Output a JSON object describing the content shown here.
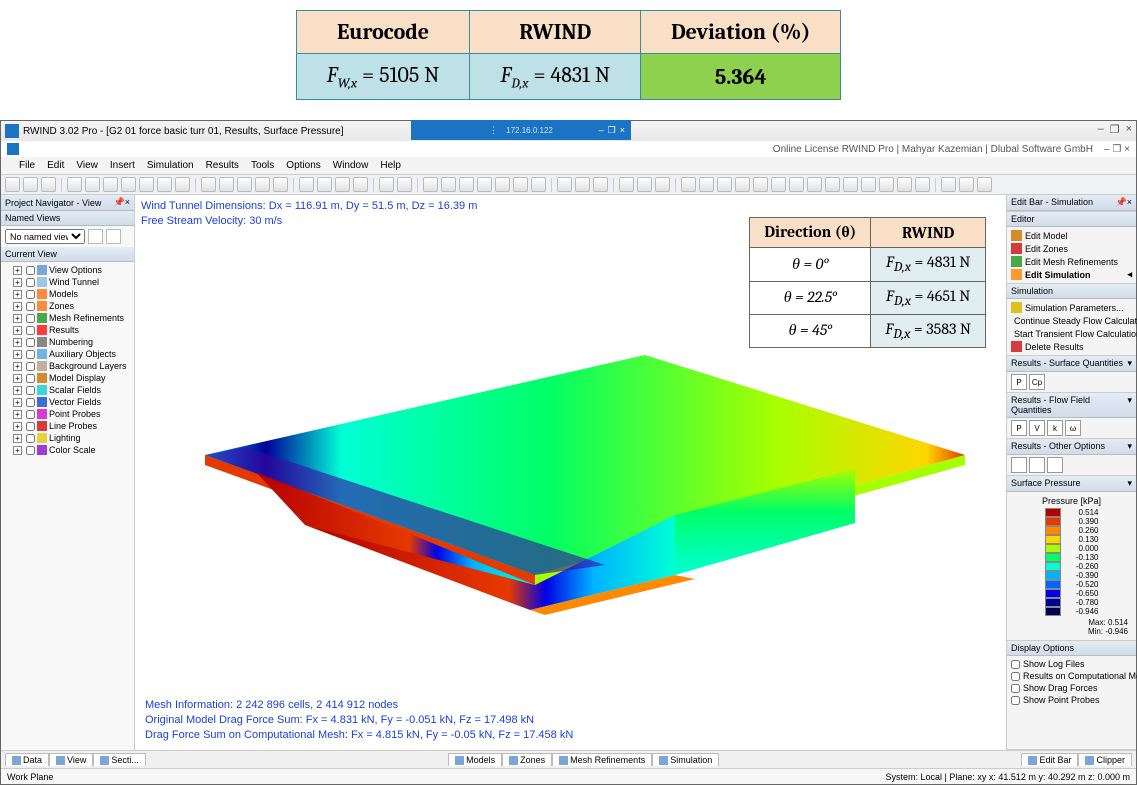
{
  "comparison_table": {
    "headers": [
      "Eurocode",
      "RWIND",
      "Deviation (%)"
    ],
    "eurocode_value": "5105 N",
    "rwind_value": "4831 N",
    "deviation": "5.364",
    "header_bg": "#f9dfc5",
    "cell_bg": "#bde1e6",
    "dev_bg": "#8fd14f",
    "border": "#3a8aa0",
    "fw_label_prefix": "F",
    "fw_sub": "W,x",
    "fd_label_prefix": "F",
    "fd_sub": "D,x"
  },
  "window": {
    "title": "RWIND 3.02 Pro - [G2 01 force basic turr 01, Results, Surface Pressure]",
    "subtitle_left_icon": "app",
    "license_line": "Online License RWIND Pro | Mahyar Kazemian | Dlubal Software GmbH",
    "float_ip": "172.16.0.122",
    "menus": [
      "File",
      "Edit",
      "View",
      "Insert",
      "Simulation",
      "Results",
      "Tools",
      "Options",
      "Window",
      "Help"
    ],
    "win_btns": {
      "min": "–",
      "max": "❐",
      "close": "×",
      "child_min": "–",
      "child_max": "❐",
      "child_close": "×"
    }
  },
  "left": {
    "nav_hdr": "Project Navigator - View",
    "named_hdr": "Named Views",
    "named_placeholder": "No named views",
    "curview_hdr": "Current View",
    "tree": [
      {
        "label": "View Options",
        "color": "#7aa6d8"
      },
      {
        "label": "Wind Tunnel",
        "color": "#9cc6e8"
      },
      {
        "label": "Models",
        "color": "#ff8a3c"
      },
      {
        "label": "Zones",
        "color": "#ff8a3c"
      },
      {
        "label": "Mesh Refinements",
        "color": "#4aa84a"
      },
      {
        "label": "Results",
        "color": "#ff3c3c"
      },
      {
        "label": "Numbering",
        "color": "#888888"
      },
      {
        "label": "Auxiliary Objects",
        "color": "#6eb4e6"
      },
      {
        "label": "Background Layers",
        "color": "#c0b0a0"
      },
      {
        "label": "Model Display",
        "color": "#d68a2e"
      },
      {
        "label": "Scalar Fields",
        "color": "#3bd6d6"
      },
      {
        "label": "Vector Fields",
        "color": "#3b6fd6"
      },
      {
        "label": "Point Probes",
        "color": "#d63bd6"
      },
      {
        "label": "Line Probes",
        "color": "#d63b3b"
      },
      {
        "label": "Lighting",
        "color": "#e6d23b"
      },
      {
        "label": "Color Scale",
        "color": "#a03bd6"
      }
    ]
  },
  "viewport": {
    "line1": "Wind Tunnel Dimensions: Dx = 116.91 m, Dy = 51.5 m, Dz = 16.39 m",
    "line2": "Free Stream Velocity: 30 m/s",
    "bottom1": "Mesh Information: 2 242 896 cells, 2 414 912 nodes",
    "bottom2": "Original Model Drag Force Sum: Fx = 4.831 kN, Fy = -0.051 kN, Fz = 17.498 kN",
    "bottom3": "Drag Force Sum on Computational Mesh: Fx = 4.815 kN, Fy = -0.05 kN, Fz = 17.458 kN",
    "text_color": "#1a3fde"
  },
  "direction_table": {
    "hdr_dir": "Direction (θ)",
    "hdr_rw": "RWIND",
    "rows": [
      {
        "theta": "θ = 0°",
        "sub": "D,x",
        "val": "4831 N"
      },
      {
        "theta": "θ = 22.5°",
        "sub": "D,x",
        "val": "4651 N"
      },
      {
        "theta": "θ = 45°",
        "sub": "D,x",
        "val": "3583 N"
      }
    ],
    "header_bg": "#f9dfc5",
    "rw_bg": "#e0eef0"
  },
  "right": {
    "editbar_hdr": "Edit Bar - Simulation",
    "editor_hdr": "Editor",
    "editor_items": [
      {
        "label": "Edit Model",
        "color": "#d68a2e"
      },
      {
        "label": "Edit Zones",
        "color": "#d63b3b"
      },
      {
        "label": "Edit Mesh Refinements",
        "color": "#4aa84a"
      },
      {
        "label": "Edit Simulation",
        "color": "#ff9a2e",
        "bold": true
      }
    ],
    "sim_hdr": "Simulation",
    "sim_items": [
      {
        "label": "Simulation Parameters...",
        "color": "#e0c020"
      },
      {
        "label": "Continue Steady Flow Calculation",
        "color": "#3b6fd6"
      },
      {
        "label": "Start Transient Flow Calculation",
        "color": "#3bd66f"
      },
      {
        "label": "Delete Results",
        "color": "#d63b3b"
      }
    ],
    "res_surf_hdr": "Results - Surface Quantities",
    "res_surf_btns": [
      "P",
      "Cp"
    ],
    "res_flow_hdr": "Results - Flow Field Quantities",
    "res_flow_btns": [
      "P",
      "V",
      "k",
      "ω"
    ],
    "res_other_hdr": "Results - Other Options",
    "pressure_hdr": "Surface Pressure",
    "legend_title": "Pressure [kPa]",
    "legend": [
      {
        "c": "#b30000",
        "v": "0.514"
      },
      {
        "c": "#e63900",
        "v": "0.390"
      },
      {
        "c": "#ff8a00",
        "v": "0.260"
      },
      {
        "c": "#ffd500",
        "v": "0.130"
      },
      {
        "c": "#a6ff00",
        "v": "0.000"
      },
      {
        "c": "#00ff66",
        "v": "-0.130"
      },
      {
        "c": "#00ffd5",
        "v": "-0.260"
      },
      {
        "c": "#00b3ff",
        "v": "-0.390"
      },
      {
        "c": "#0066ff",
        "v": "-0.520"
      },
      {
        "c": "#0000e6",
        "v": "-0.650"
      },
      {
        "c": "#000099",
        "v": "-0.780"
      },
      {
        "c": "#000055",
        "v": "-0.946"
      }
    ],
    "legend_max_label": "Max:",
    "legend_min_label": "Min:",
    "legend_max": "0.514",
    "legend_min": "-0.946",
    "display_hdr": "Display Options",
    "display_items": [
      "Show Log Files",
      "Results on Computational Mesh",
      "Show Drag Forces",
      "Show Point Probes"
    ]
  },
  "bottom": {
    "tabs_left": [
      "Data",
      "View",
      "Secti..."
    ],
    "tabs_mid": [
      "Models",
      "Zones",
      "Mesh Refinements",
      "Simulation"
    ],
    "tabs_right": [
      "Edit Bar",
      "Clipper"
    ],
    "status_left": "Work Plane",
    "status_right": "System: Local | Plane: xy    x: 41.512 m   y: 40.292 m   z: 0.000 m"
  },
  "toolbar_groups": [
    3,
    7,
    5,
    4,
    2,
    7,
    3,
    3,
    14,
    3
  ]
}
